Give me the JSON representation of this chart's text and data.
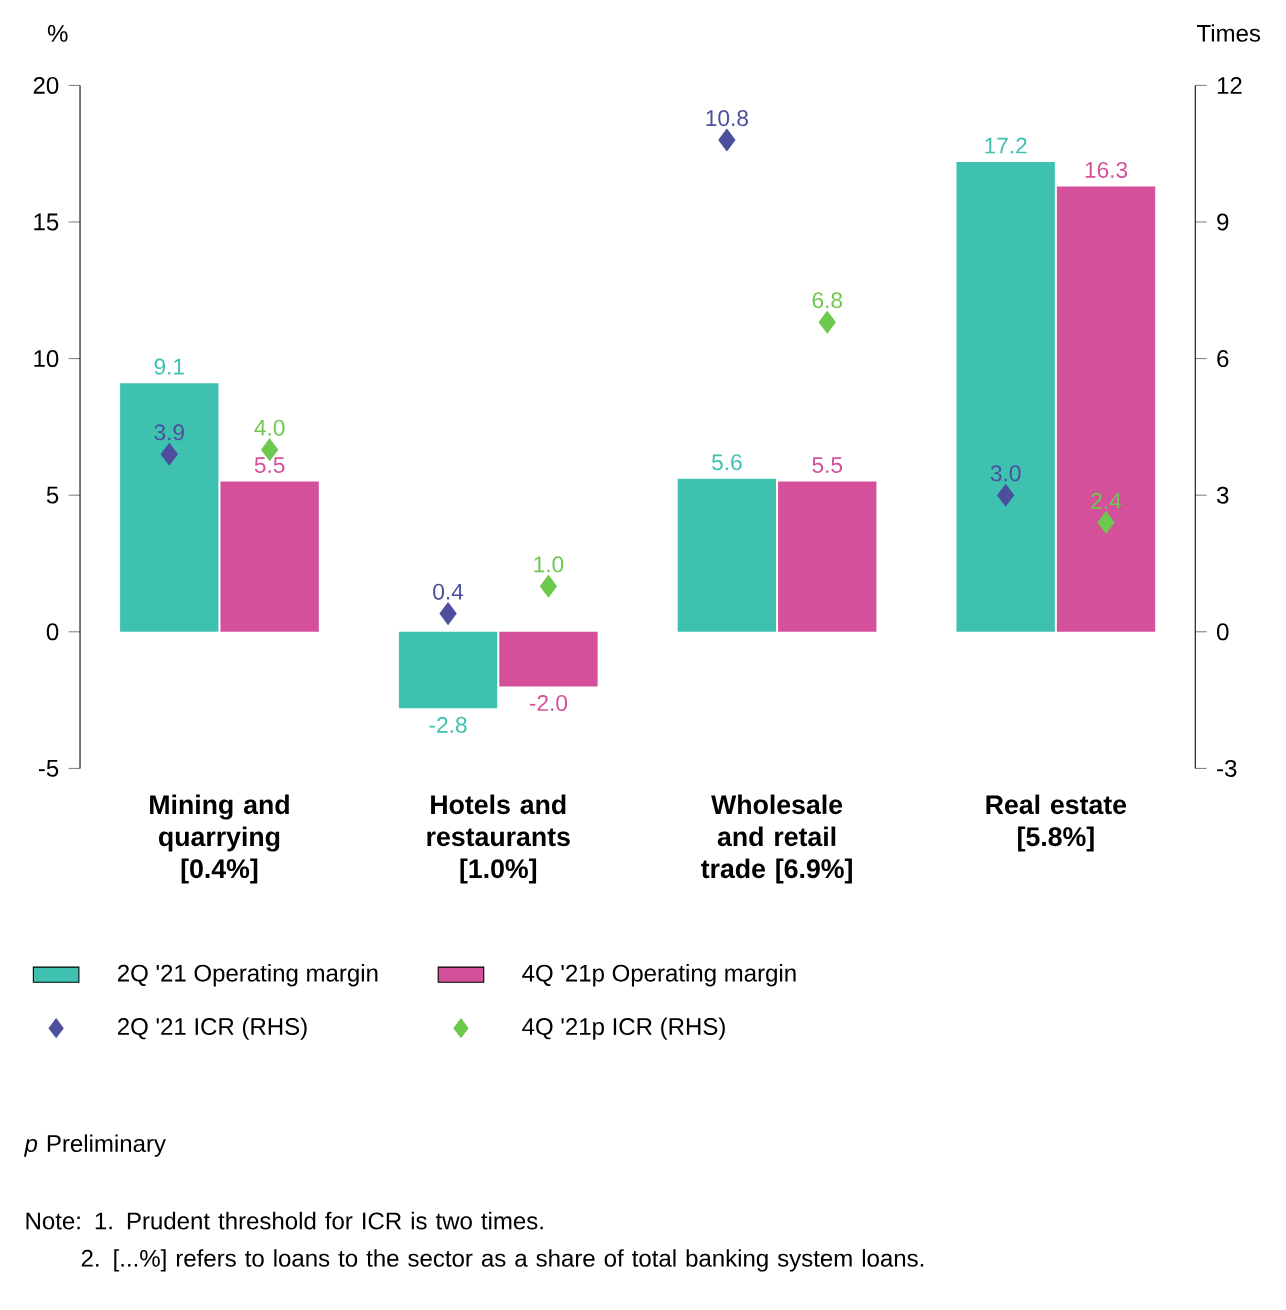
{
  "chart_data": {
    "type": "bar",
    "categories": [
      "Mining and quarrying [0.4%]",
      "Hotels and restaurants [1.0%]",
      "Wholesale and retail trade [6.9%]",
      "Real estate [5.8%]"
    ],
    "series": [
      {
        "name": "2Q '21 Operating margin",
        "type": "bar",
        "color": "#3fc1b0",
        "values": [
          9.1,
          -2.8,
          5.6,
          17.2
        ],
        "value_labels": [
          "9.1",
          "-2.8",
          "5.6",
          "17.2"
        ]
      },
      {
        "name": "4Q '21p Operating margin",
        "type": "bar",
        "color": "#d4509a",
        "values": [
          5.5,
          -2.0,
          5.5,
          16.3
        ],
        "value_labels": [
          "5.5",
          "-2.0",
          "5.5",
          "16.3"
        ]
      },
      {
        "name": "2Q '21 ICR (RHS)",
        "type": "scatter",
        "axis": "y2",
        "marker": "diamond",
        "color": "#4d4f9e",
        "values": [
          3.9,
          0.4,
          10.8,
          3.0
        ],
        "value_labels": [
          "3.9",
          "0.4",
          "10.8",
          "3.0"
        ]
      },
      {
        "name": "4Q '21p ICR (RHS)",
        "type": "scatter",
        "axis": "y2",
        "marker": "diamond",
        "color": "#6dc84e",
        "values": [
          4.0,
          1.0,
          6.8,
          2.4
        ],
        "value_labels": [
          "4.0",
          "1.0",
          "6.8",
          "2.4"
        ]
      }
    ],
    "ylabel": "%",
    "y2label": "Times",
    "ylim": [
      -5,
      20
    ],
    "yticks": [
      -5,
      0,
      5,
      10,
      15,
      20
    ],
    "y2lim": [
      -3,
      12
    ],
    "y2ticks": [
      -3,
      0,
      3,
      6,
      9,
      12
    ],
    "legend": "bottom",
    "annotations": [
      "*p* Preliminary",
      "Note: 1. Prudent threshold for ICR is two times.",
      "2. [...%] refers to loans to the sector as a share of total banking system loans."
    ]
  }
}
